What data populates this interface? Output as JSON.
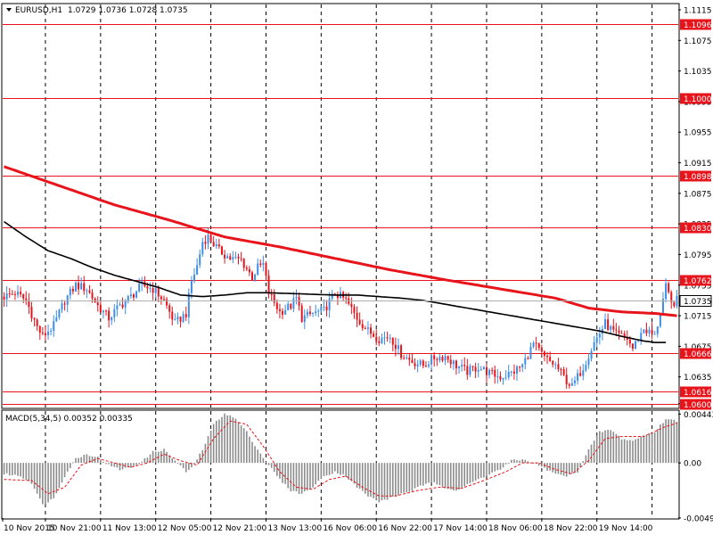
{
  "header": {
    "symbol_label": "EURUSD,H1",
    "ohlc_label": "1.0729 1.0736 1.0728 1.0735"
  },
  "macd_panel": {
    "label": "MACD(5,34,5) 0.00352 0.00335"
  },
  "colors": {
    "bull": "#3d8ee8",
    "bear": "#e8141b",
    "level_line": "#e8141b",
    "ma_slow": "#e8141b",
    "ma_fast": "#000000",
    "histogram": "#8c8c8c",
    "signal": "#e8141b",
    "grid": "#000000"
  },
  "chart_data": [
    {
      "type": "candlestick",
      "symbol": "EURUSD",
      "timeframe": "H1",
      "ylim": [
        1.0595,
        1.1122
      ],
      "y_ticks": [
        "1.1115",
        "1.1075",
        "1.1035",
        "1.0995",
        "1.0955",
        "1.0915",
        "1.0875",
        "1.0835",
        "1.0795",
        "1.0755",
        "1.0715",
        "1.0675",
        "1.0635",
        "1.0600"
      ],
      "levels": [
        {
          "label": "1.1096",
          "value": 1.1096
        },
        {
          "label": "1.1000",
          "value": 1.1
        },
        {
          "label": "1.0898",
          "value": 1.0898
        },
        {
          "label": "1.0830",
          "value": 1.083
        },
        {
          "label": "1.0762",
          "value": 1.0762
        },
        {
          "label": "1.0666",
          "value": 1.0666
        },
        {
          "label": "1.0616",
          "value": 1.0616
        },
        {
          "label": "1.0600",
          "value": 1.06
        }
      ],
      "current_price": {
        "label": "1.0735",
        "value": 1.0735
      },
      "x_labels": [
        "10 Nov 2015",
        "10 Nov 21:00",
        "11 Nov 13:00",
        "12 Nov 05:00",
        "12 Nov 21:00",
        "13 Nov 13:00",
        "16 Nov 06:00",
        "16 Nov 22:00",
        "17 Nov 14:00",
        "18 Nov 06:00",
        "18 Nov 22:00",
        "19 Nov 14:00"
      ],
      "close_path": [
        [
          0,
          1.074
        ],
        [
          4,
          1.0745
        ],
        [
          8,
          1.0735
        ],
        [
          12,
          1.07
        ],
        [
          14,
          1.0688
        ],
        [
          18,
          1.0702
        ],
        [
          22,
          1.0735
        ],
        [
          26,
          1.0755
        ],
        [
          30,
          1.075
        ],
        [
          34,
          1.0728
        ],
        [
          38,
          1.0712
        ],
        [
          42,
          1.0728
        ],
        [
          46,
          1.074
        ],
        [
          50,
          1.0755
        ],
        [
          54,
          1.075
        ],
        [
          58,
          1.0735
        ],
        [
          62,
          1.0705
        ],
        [
          66,
          1.0718
        ],
        [
          68,
          1.076
        ],
        [
          70,
          1.078
        ],
        [
          72,
          1.0812
        ],
        [
          74,
          1.0818
        ],
        [
          78,
          1.08
        ],
        [
          82,
          1.079
        ],
        [
          86,
          1.0788
        ],
        [
          90,
          1.0765
        ],
        [
          92,
          1.0778
        ],
        [
          94,
          1.0782
        ],
        [
          96,
          1.0745
        ],
        [
          100,
          1.072
        ],
        [
          104,
          1.0728
        ],
        [
          106,
          1.0738
        ],
        [
          108,
          1.0712
        ],
        [
          112,
          1.0718
        ],
        [
          116,
          1.0722
        ],
        [
          120,
          1.0745
        ],
        [
          124,
          1.0735
        ],
        [
          128,
          1.0712
        ],
        [
          132,
          1.0695
        ],
        [
          136,
          1.0685
        ],
        [
          140,
          1.0688
        ],
        [
          144,
          1.0665
        ],
        [
          148,
          1.0655
        ],
        [
          152,
          1.065
        ],
        [
          156,
          1.066
        ],
        [
          160,
          1.0662
        ],
        [
          164,
          1.065
        ],
        [
          168,
          1.0642
        ],
        [
          172,
          1.0648
        ],
        [
          176,
          1.064
        ],
        [
          180,
          1.0635
        ],
        [
          184,
          1.064
        ],
        [
          188,
          1.065
        ],
        [
          192,
          1.0678
        ],
        [
          196,
          1.066
        ],
        [
          200,
          1.065
        ],
        [
          204,
          1.063
        ],
        [
          206,
          1.0622
        ],
        [
          210,
          1.0648
        ],
        [
          214,
          1.068
        ],
        [
          218,
          1.0705
        ],
        [
          222,
          1.069
        ],
        [
          226,
          1.0685
        ],
        [
          228,
          1.0672
        ],
        [
          232,
          1.0698
        ],
        [
          236,
          1.0688
        ],
        [
          238,
          1.072
        ],
        [
          240,
          1.0752
        ],
        [
          242,
          1.073
        ],
        [
          244,
          1.0735
        ]
      ],
      "ma_slow": [
        [
          0,
          1.091
        ],
        [
          20,
          1.0885
        ],
        [
          40,
          1.086
        ],
        [
          60,
          1.084
        ],
        [
          80,
          1.0818
        ],
        [
          100,
          1.0805
        ],
        [
          120,
          1.079
        ],
        [
          140,
          1.0775
        ],
        [
          160,
          1.0762
        ],
        [
          180,
          1.075
        ],
        [
          200,
          1.0738
        ],
        [
          212,
          1.0725
        ],
        [
          224,
          1.072
        ],
        [
          236,
          1.0718
        ],
        [
          244,
          1.0715
        ]
      ],
      "ma_fast": [
        [
          0,
          1.0838
        ],
        [
          8,
          1.0818
        ],
        [
          16,
          1.08
        ],
        [
          24,
          1.079
        ],
        [
          32,
          1.0778
        ],
        [
          40,
          1.0768
        ],
        [
          48,
          1.076
        ],
        [
          56,
          1.0752
        ],
        [
          64,
          1.0742
        ],
        [
          72,
          1.074
        ],
        [
          80,
          1.0742
        ],
        [
          88,
          1.0745
        ],
        [
          96,
          1.0745
        ],
        [
          104,
          1.0744
        ],
        [
          112,
          1.0743
        ],
        [
          120,
          1.0742
        ],
        [
          128,
          1.0742
        ],
        [
          136,
          1.074
        ],
        [
          144,
          1.0738
        ],
        [
          152,
          1.0735
        ],
        [
          160,
          1.073
        ],
        [
          168,
          1.0725
        ],
        [
          176,
          1.072
        ],
        [
          184,
          1.0715
        ],
        [
          192,
          1.071
        ],
        [
          200,
          1.0705
        ],
        [
          208,
          1.07
        ],
        [
          216,
          1.0695
        ],
        [
          224,
          1.0688
        ],
        [
          232,
          1.0682
        ],
        [
          236,
          1.068
        ],
        [
          240,
          1.068
        ]
      ]
    },
    {
      "type": "bar",
      "indicator": "MACD",
      "params": "5,34,5",
      "ylim": [
        -0.005,
        0.0047
      ],
      "y_ticks": [
        "0.00443",
        "0.00",
        "-0.00499"
      ],
      "histogram_path": [
        [
          0,
          -0.001
        ],
        [
          6,
          -0.0012
        ],
        [
          10,
          -0.0018
        ],
        [
          14,
          -0.0038
        ],
        [
          18,
          -0.0032
        ],
        [
          22,
          -0.0012
        ],
        [
          26,
          0.0004
        ],
        [
          30,
          0.0008
        ],
        [
          34,
          0.0005
        ],
        [
          38,
          -0.0002
        ],
        [
          42,
          -0.0006
        ],
        [
          46,
          -0.0004
        ],
        [
          50,
          0.0001
        ],
        [
          54,
          0.001
        ],
        [
          58,
          0.0012
        ],
        [
          62,
          0.0002
        ],
        [
          66,
          -0.0008
        ],
        [
          68,
          -0.0005
        ],
        [
          72,
          0.0012
        ],
        [
          76,
          0.0035
        ],
        [
          80,
          0.0045
        ],
        [
          84,
          0.004
        ],
        [
          88,
          0.0028
        ],
        [
          92,
          0.0012
        ],
        [
          96,
          -0.0002
        ],
        [
          100,
          -0.0015
        ],
        [
          104,
          -0.0025
        ],
        [
          108,
          -0.0028
        ],
        [
          112,
          -0.0022
        ],
        [
          116,
          -0.0012
        ],
        [
          120,
          -0.0008
        ],
        [
          124,
          -0.0012
        ],
        [
          128,
          -0.0022
        ],
        [
          132,
          -0.003
        ],
        [
          136,
          -0.0035
        ],
        [
          140,
          -0.0032
        ],
        [
          144,
          -0.0028
        ],
        [
          148,
          -0.0025
        ],
        [
          152,
          -0.002
        ],
        [
          156,
          -0.0018
        ],
        [
          160,
          -0.0022
        ],
        [
          164,
          -0.0025
        ],
        [
          168,
          -0.002
        ],
        [
          172,
          -0.0015
        ],
        [
          176,
          -0.001
        ],
        [
          180,
          -0.0006
        ],
        [
          184,
          0.0002
        ],
        [
          188,
          0.0003
        ],
        [
          192,
          0.0
        ],
        [
          196,
          -0.0005
        ],
        [
          200,
          -0.001
        ],
        [
          204,
          -0.0012
        ],
        [
          208,
          -0.0008
        ],
        [
          212,
          0.0012
        ],
        [
          216,
          0.0028
        ],
        [
          220,
          0.003
        ],
        [
          224,
          0.0022
        ],
        [
          228,
          0.002
        ],
        [
          232,
          0.0025
        ],
        [
          236,
          0.0028
        ],
        [
          240,
          0.004
        ],
        [
          244,
          0.0038
        ]
      ],
      "signal_path": [
        [
          0,
          -0.0015
        ],
        [
          10,
          -0.0016
        ],
        [
          16,
          -0.0028
        ],
        [
          22,
          -0.0022
        ],
        [
          28,
          -0.0002
        ],
        [
          34,
          0.0004
        ],
        [
          40,
          0.0
        ],
        [
          46,
          -0.0004
        ],
        [
          52,
          0.0
        ],
        [
          58,
          0.0008
        ],
        [
          64,
          0.0002
        ],
        [
          70,
          -0.0002
        ],
        [
          76,
          0.0022
        ],
        [
          82,
          0.0038
        ],
        [
          88,
          0.0035
        ],
        [
          94,
          0.0015
        ],
        [
          100,
          -0.0008
        ],
        [
          106,
          -0.0022
        ],
        [
          112,
          -0.0024
        ],
        [
          118,
          -0.0015
        ],
        [
          124,
          -0.0012
        ],
        [
          130,
          -0.0022
        ],
        [
          136,
          -0.003
        ],
        [
          142,
          -0.003
        ],
        [
          150,
          -0.0025
        ],
        [
          158,
          -0.0022
        ],
        [
          166,
          -0.0023
        ],
        [
          174,
          -0.0016
        ],
        [
          182,
          -0.0008
        ],
        [
          188,
          0.0
        ],
        [
          194,
          0.0
        ],
        [
          200,
          -0.0006
        ],
        [
          206,
          -0.001
        ],
        [
          212,
          0.0002
        ],
        [
          218,
          0.0022
        ],
        [
          224,
          0.0024
        ],
        [
          232,
          0.0024
        ],
        [
          240,
          0.0033
        ],
        [
          244,
          0.0036
        ]
      ]
    }
  ]
}
